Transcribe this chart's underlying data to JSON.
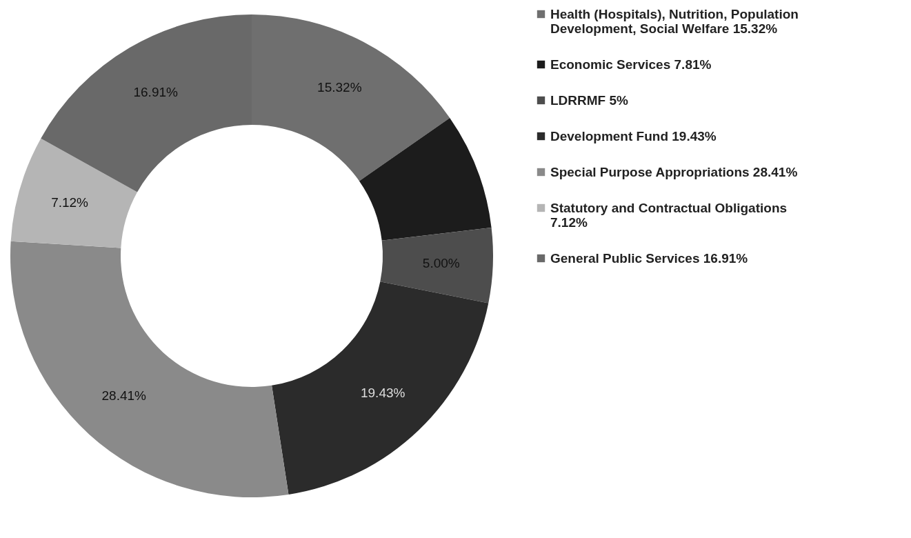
{
  "chart_data": {
    "type": "donut",
    "categories": [
      "Health (Hospitals), Nutrition, Population Development, Social Welfare 15.32%",
      "Economic Services 7.81%",
      "LDRRMF 5%",
      "Development Fund 19.43%",
      "Special Purpose Appropriations 28.41%",
      "Statutory and Contractual Obligations 7.12%",
      "General Public Services 16.91%"
    ],
    "values": [
      15.32,
      7.81,
      5.0,
      19.43,
      28.41,
      7.12,
      16.91
    ],
    "value_labels": [
      "15.32%",
      null,
      "5.00%",
      "19.43%",
      "28.41%",
      "7.12%",
      "16.91%"
    ],
    "colors": [
      "#6f6f6f",
      "#1c1c1c",
      "#4d4d4d",
      "#2b2b2b",
      "#8a8a8a",
      "#b5b5b5",
      "#696969"
    ],
    "legend": "right"
  }
}
